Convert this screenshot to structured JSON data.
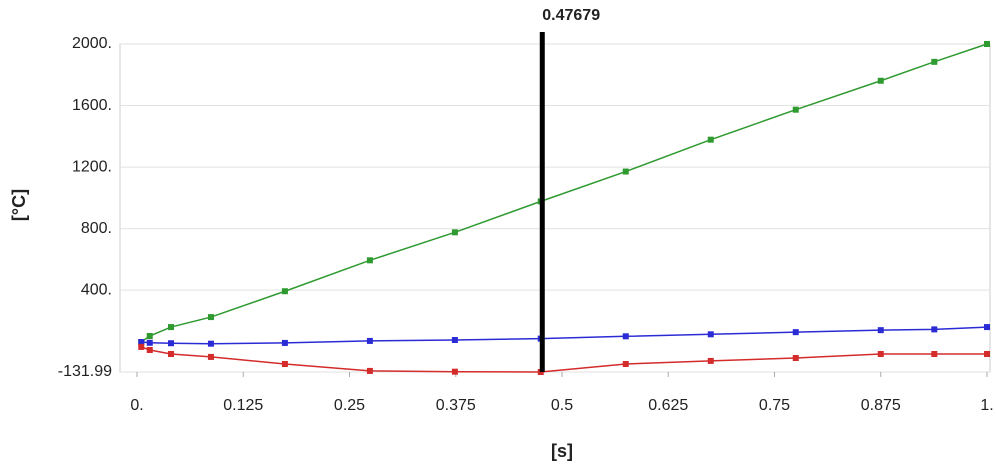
{
  "chart_data": {
    "type": "line",
    "x_label": "[s]",
    "y_label": "[°C]",
    "x": [
      0.005,
      0.015,
      0.04,
      0.087,
      0.174,
      0.274,
      0.374,
      0.475,
      0.575,
      0.675,
      0.775,
      0.875,
      0.938,
      1.0
    ],
    "series": [
      {
        "color": "#2f9a2f",
        "values": [
          63,
          102,
          160,
          225,
          393,
          594,
          776,
          977,
          1171,
          1378,
          1573,
          1761,
          1884,
          2000
        ]
      },
      {
        "color": "#2b2bd6",
        "values": [
          63,
          58,
          55,
          52,
          57,
          70,
          76,
          85,
          100,
          113,
          127,
          140,
          145,
          160
        ]
      },
      {
        "color": "#d42b2b",
        "values": [
          31,
          11,
          -15,
          -34,
          -80,
          -125,
          -130,
          -131.99,
          -80,
          -60,
          -41,
          -15,
          -15,
          -15
        ]
      }
    ],
    "cursor": 0.47679,
    "xlim": [
      0,
      1
    ],
    "xticks": [
      {
        "value": 0,
        "label": "0."
      },
      0.125,
      0.25,
      0.375,
      0.5,
      0.625,
      0.75,
      0.875,
      {
        "value": 1,
        "label": "1."
      }
    ],
    "ylim": [
      -131.99,
      2000
    ],
    "yticks": [
      -131.99,
      {
        "value": 400,
        "label": "400."
      },
      {
        "value": 800,
        "label": "800."
      },
      {
        "value": 1200,
        "label": "1200."
      },
      {
        "value": 1600,
        "label": "1600."
      },
      {
        "value": 2000,
        "label": "2000."
      }
    ],
    "grid": true
  }
}
